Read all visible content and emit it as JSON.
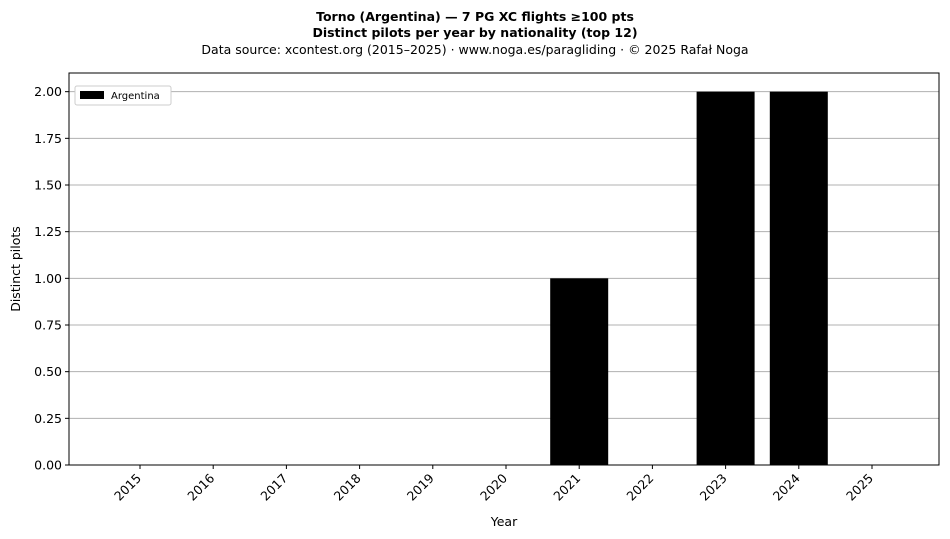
{
  "header": {
    "title": "Torno (Argentina)  —  7 PG XC flights ≥100 pts",
    "subtitle": "Distinct pilots per year by nationality (top 12)",
    "source": "Data source: xcontest.org (2015–2025)  ·  www.noga.es/paragliding  ·  © 2025 Rafał Noga"
  },
  "chart_data": {
    "type": "bar",
    "categories": [
      "2015",
      "2016",
      "2017",
      "2018",
      "2019",
      "2020",
      "2021",
      "2022",
      "2023",
      "2024",
      "2025"
    ],
    "series": [
      {
        "name": "Argentina",
        "values": [
          0,
          0,
          0,
          0,
          0,
          0,
          1,
          0,
          2,
          2,
          0
        ],
        "color": "#000000"
      }
    ],
    "xlabel": "Year",
    "ylabel": "Distinct pilots",
    "ylim": [
      0,
      2.1
    ],
    "yticks": [
      "0.00",
      "0.25",
      "0.50",
      "0.75",
      "1.00",
      "1.25",
      "1.50",
      "1.75",
      "2.00"
    ],
    "grid": "y",
    "legend_position": "top-left",
    "xtick_rotation": 45
  }
}
